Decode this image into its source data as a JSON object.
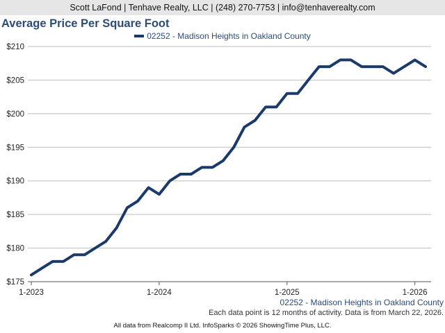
{
  "header": {
    "contact_line": "Scott LaFond | Tenhave Realty, LLC | (248) 270-7753 | info@tenhaverealty.com"
  },
  "chart_data": {
    "type": "line",
    "title": "Average Price Per Square Foot",
    "x": [
      "2023-01",
      "2023-02",
      "2023-03",
      "2023-04",
      "2023-05",
      "2023-06",
      "2023-07",
      "2023-08",
      "2023-09",
      "2023-10",
      "2023-11",
      "2023-12",
      "2024-01",
      "2024-02",
      "2024-03",
      "2024-04",
      "2024-05",
      "2024-06",
      "2024-07",
      "2024-08",
      "2024-09",
      "2024-10",
      "2024-11",
      "2024-12",
      "2025-01",
      "2025-02",
      "2025-03",
      "2025-04",
      "2025-05",
      "2025-06",
      "2025-07",
      "2025-08",
      "2025-09",
      "2025-10",
      "2025-11",
      "2025-12",
      "2026-01",
      "2026-02"
    ],
    "x_tick_labels": [
      "1-2023",
      "1-2024",
      "1-2025",
      "1-2026"
    ],
    "x_tick_values": [
      "2023-01",
      "2024-01",
      "2025-01",
      "2026-01"
    ],
    "series": [
      {
        "name": "02252 - Madison Heights in Oakland County",
        "color": "#1b3a6b",
        "values": [
          176,
          177,
          178,
          178,
          179,
          179,
          180,
          181,
          183,
          186,
          187,
          189,
          188,
          190,
          191,
          191,
          192,
          192,
          193,
          195,
          198,
          199,
          201,
          201,
          203,
          203,
          205,
          207,
          207,
          208,
          208,
          207,
          207,
          207,
          206,
          207,
          208,
          207
        ]
      }
    ],
    "ylim": [
      175,
      210
    ],
    "y_ticks": [
      175,
      180,
      185,
      190,
      195,
      200,
      205,
      210
    ],
    "y_tick_labels": [
      "$175",
      "$180",
      "$185",
      "$190",
      "$195",
      "$200",
      "$205",
      "$210"
    ],
    "grid": true,
    "legend_position": "top-center",
    "x_axis_subtitle": "02252 - Madison Heights in Oakland County"
  },
  "notes": {
    "data_note": "Each data point is 12 months of activity. Data is from March 22, 2026."
  },
  "footer": {
    "credit": "All data from Realcomp II Ltd. InfoSparks © 2026 ShowingTime Plus, LLC."
  }
}
